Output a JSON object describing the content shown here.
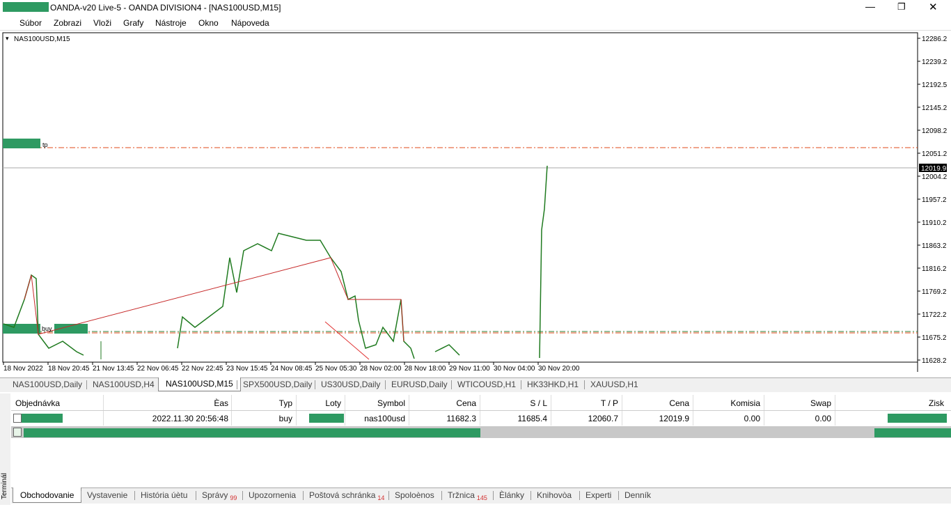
{
  "window": {
    "title": "OANDA-v20 Live-5 - OANDA DIVISION4 - [NAS100USD,M15]"
  },
  "menu": [
    "Súbor",
    "Zobrazi",
    "Vloži",
    "Grafy",
    "Nástroje",
    "Okno",
    "Nápoveda"
  ],
  "chart": {
    "label": "NAS100USD,M15",
    "price_labels": [
      "12286.2",
      "12239.2",
      "12192.5",
      "12145.2",
      "12098.2",
      "12051.2",
      "12004.2",
      "11957.2",
      "11910.2",
      "11863.2",
      "11816.2",
      "11769.2",
      "11722.2",
      "11675.2",
      "11628.2"
    ],
    "current_price": "12019.9",
    "tp_label": "tp",
    "buy_label": "buy",
    "time_labels": [
      "18 Nov 2022",
      "18 Nov 20:45",
      "21 Nov 13:45",
      "22 Nov 06:45",
      "22 Nov 22:45",
      "23 Nov 15:45",
      "24 Nov 08:45",
      "25 Nov 05:30",
      "28 Nov 02:00",
      "28 Nov 18:00",
      "29 Nov 11:00",
      "30 Nov 04:00",
      "30 Nov 20:00"
    ]
  },
  "chart_tabs": [
    "NAS100USD,Daily",
    "NAS100USD,H4",
    "NAS100USD,M15",
    "SPX500USD,Daily",
    "US30USD,Daily",
    "EURUSD,Daily",
    "WTICOUSD,H1",
    "HK33HKD,H1",
    "XAUUSD,H1"
  ],
  "terminal": {
    "side_label": "Terminál",
    "headers": [
      "Objednávka",
      "Èas",
      "Typ",
      "Loty",
      "Symbol",
      "Cena",
      "S / L",
      "T / P",
      "Cena",
      "Komisia",
      "Swap",
      "Zisk"
    ],
    "row": {
      "time": "2022.11.30 20:56:48",
      "type": "buy",
      "symbol": "nas100usd",
      "open_price": "11682.3",
      "sl": "11685.4",
      "tp": "12060.7",
      "price": "12019.9",
      "commission": "0.00",
      "swap": "0.00"
    },
    "tabs": [
      {
        "label": "Obchodovanie"
      },
      {
        "label": "Vystavenie"
      },
      {
        "label": "História úètu"
      },
      {
        "label": "Správy",
        "badge": "99"
      },
      {
        "label": "Upozornenia"
      },
      {
        "label": "Poštová schránka",
        "badge": "14"
      },
      {
        "label": "Spoloènos"
      },
      {
        "label": "Tržnica",
        "badge": "145"
      },
      {
        "label": "Èlánky"
      },
      {
        "label": "Knihovòa"
      },
      {
        "label": "Experti"
      },
      {
        "label": "Denník"
      }
    ]
  }
}
